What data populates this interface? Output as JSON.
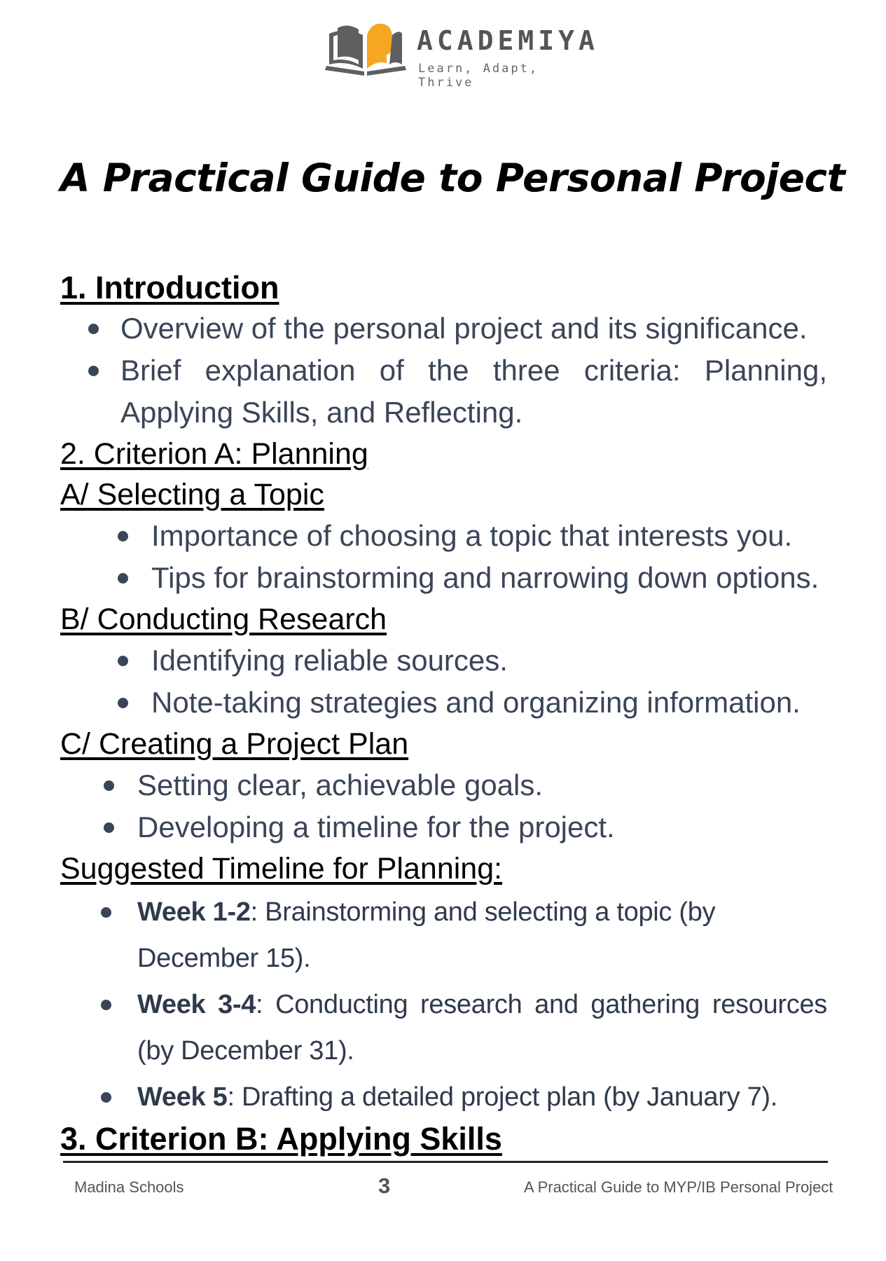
{
  "logo": {
    "name": "ACADEMIYA",
    "tagline": "Learn, Adapt, Thrive",
    "colors": {
      "gray": "#5f5f5f",
      "orange": "#f5a623"
    },
    "icon": "open-book-with-head-silhouette-icon"
  },
  "title": "A Practical Guide to Personal Project",
  "sections": {
    "intro": {
      "heading": "1. Introduction",
      "bullets": [
        "Overview of the personal project and its significance.",
        "Brief explanation of the three criteria: Planning, Applying Skills, and Reflecting."
      ]
    },
    "criterion_a": {
      "heading": "2. Criterion A: Planning",
      "a": {
        "heading": "A/ Selecting a Topic",
        "bullets": [
          "Importance of choosing a topic that interests you.",
          "Tips for brainstorming and narrowing down options."
        ]
      },
      "b": {
        "heading": "B/ Conducting Research",
        "bullets": [
          "Identifying reliable sources.",
          "Note-taking strategies and organizing information."
        ]
      },
      "c": {
        "heading": "C/ Creating a Project Plan",
        "bullets": [
          "Setting clear, achievable goals.",
          "Developing a timeline for the project."
        ]
      },
      "timeline": {
        "heading": "Suggested Timeline for Planning:",
        "items": [
          {
            "week": "Week 1-2",
            "text": ": Brainstorming and selecting a topic (by December 15)."
          },
          {
            "week": "Week 3-4",
            "text": ": Conducting research and gathering resources (by December 31)."
          },
          {
            "week": "Week 5",
            "text": ": Drafting a detailed project plan (by January 7)."
          }
        ]
      }
    },
    "criterion_b": {
      "heading": "3. Criterion B: Applying Skills"
    }
  },
  "footer": {
    "left": "Madina Schools",
    "page": "3",
    "right": "A Practical Guide to MYP/IB  Personal Project"
  }
}
